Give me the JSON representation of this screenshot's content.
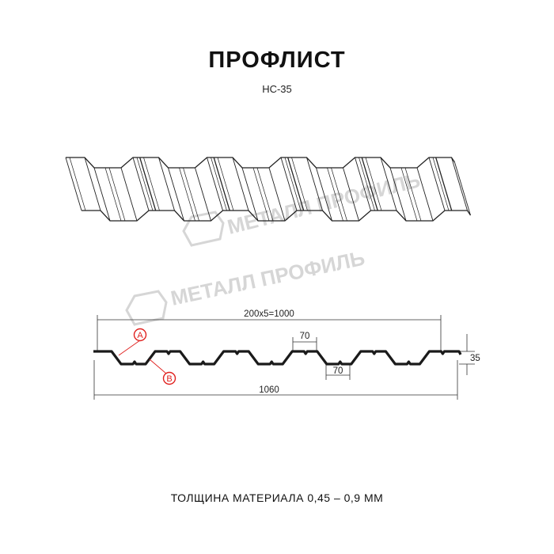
{
  "title": "ПРОФЛИСТ",
  "subtitle": "НС-35",
  "footer": "ТОЛЩИНА МАТЕРИАЛА 0,45 – 0,9 ММ",
  "watermark": "МЕТАЛЛ ПРОФИЛЬ",
  "dimensions": {
    "pitch_total": "200x5=1000",
    "crest_width": "70",
    "valley_width": "70",
    "height": "35",
    "total_width": "1060"
  },
  "markers": {
    "a": "A",
    "b": "B"
  },
  "colors": {
    "profile": "#1a1a1a",
    "marker": "#e0201e",
    "watermark": "#d6d6d6"
  }
}
